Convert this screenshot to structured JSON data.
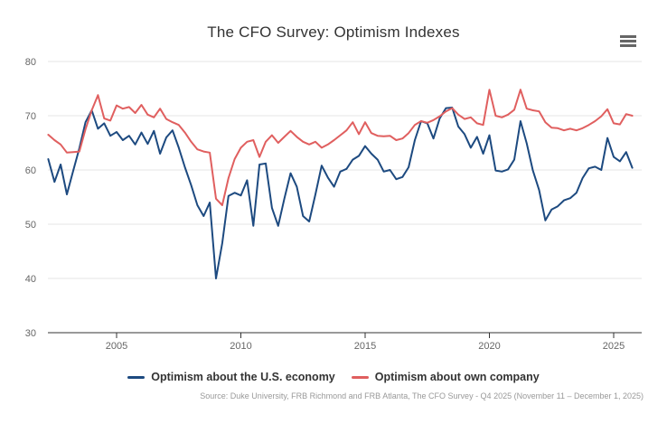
{
  "header": {
    "title": "The CFO Survey: Optimism Indexes",
    "menu_icon": "hamburger-context-menu"
  },
  "chart_data": {
    "type": "line",
    "title": "The CFO Survey: Optimism Indexes",
    "xlabel": "",
    "ylabel": "",
    "x_start": 2002.25,
    "x_step": 0.25,
    "x_unit": "quarterly",
    "xlim": [
      2002.1,
      2026.2
    ],
    "ylim": [
      30,
      80
    ],
    "xticks": [
      2005,
      2010,
      2015,
      2020,
      2025
    ],
    "yticks": [
      30,
      40,
      50,
      60,
      70,
      80
    ],
    "grid": "horizontal",
    "grid_color": "#e6e6e6",
    "axis_color": "#333333",
    "tick_label_color": "#666666",
    "legend_position": "bottom",
    "series": [
      {
        "name": "Optimism about the U.S. economy",
        "color": "#1d4a80",
        "values": [
          62,
          57.8,
          61,
          55.5,
          59.8,
          64,
          68.8,
          71,
          67.6,
          68.6,
          66.3,
          67,
          65.5,
          66.3,
          64.7,
          66.9,
          64.8,
          67.2,
          63,
          66,
          67.3,
          64.1,
          60.5,
          57.2,
          53.5,
          51.5,
          54,
          40,
          46.5,
          55.2,
          55.8,
          55.3,
          58.1,
          49.7,
          61,
          61.2,
          53,
          49.7,
          54.7,
          59.4,
          56.9,
          51.5,
          50.5,
          55.5,
          60.8,
          58.6,
          56.9,
          59.7,
          60.2,
          61.9,
          62.6,
          64.4,
          63,
          61.9,
          59.7,
          60,
          58.3,
          58.7,
          60.5,
          65.5,
          69,
          68.6,
          65.8,
          69.5,
          71.4,
          71.5,
          68,
          66.6,
          64.1,
          66.1,
          63,
          66.4,
          59.9,
          59.7,
          60.1,
          61.9,
          69,
          64.9,
          59.9,
          56.3,
          50.7,
          52.7,
          53.3,
          54.4,
          54.8,
          55.8,
          58.5,
          60.3,
          60.6,
          60,
          65.9,
          62.4,
          61.6,
          63.3,
          60.4
        ]
      },
      {
        "name": "Optimism about own company",
        "color": "#e05f5f",
        "values": [
          66.5,
          65.5,
          64.7,
          63.2,
          63.3,
          63.4,
          67.5,
          71,
          73.8,
          69.5,
          69.1,
          71.9,
          71.3,
          71.6,
          70.5,
          72,
          70.2,
          69.7,
          71.3,
          69.4,
          68.8,
          68.3,
          66.9,
          65.2,
          63.8,
          63.4,
          63.2,
          54.7,
          53.5,
          58.5,
          62,
          64.1,
          65.2,
          65.5,
          62.4,
          65.2,
          66.4,
          65,
          66.1,
          67.2,
          66.1,
          65.2,
          64.7,
          65.2,
          64.1,
          64.7,
          65.5,
          66.4,
          67.3,
          68.8,
          66.6,
          68.8,
          66.8,
          66.3,
          66.2,
          66.3,
          65.5,
          65.8,
          66.8,
          68.3,
          69,
          68.7,
          69.2,
          69.9,
          70.8,
          71.4,
          70.2,
          69.4,
          69.7,
          68.6,
          68.3,
          74.8,
          70,
          69.7,
          70.2,
          71.1,
          74.8,
          71.3,
          71,
          70.8,
          68.8,
          67.8,
          67.7,
          67.3,
          67.6,
          67.3,
          67.7,
          68.3,
          69,
          69.9,
          71.2,
          68.6,
          68.4,
          70.3,
          70
        ]
      }
    ],
    "source": "Source: Duke University, FRB Richmond and FRB Atlanta, The CFO Survey - Q4 2025 (November 11 – December 1, 2025)"
  }
}
